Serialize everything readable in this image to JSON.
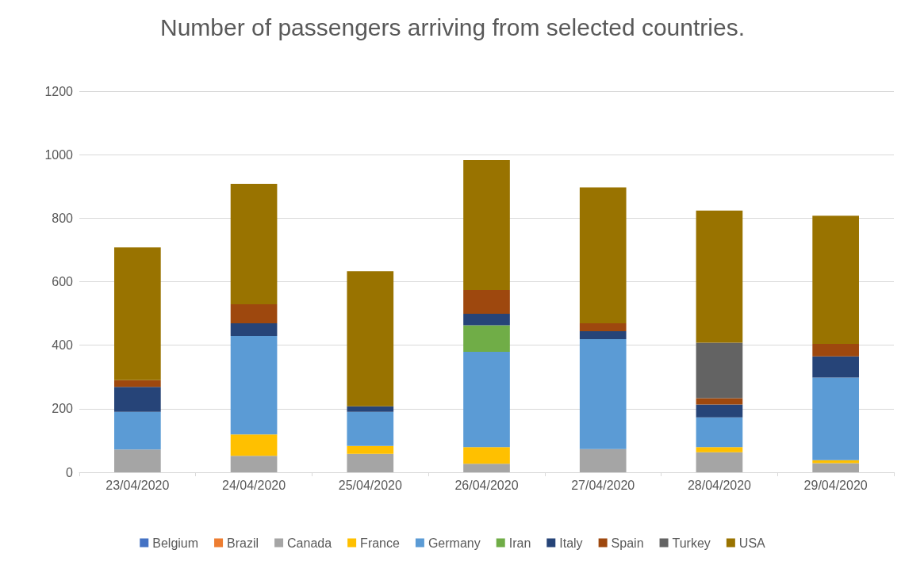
{
  "chart_data": {
    "type": "bar",
    "title": "Number of passengers arriving from selected countries.",
    "categories": [
      "23/04/2020",
      "24/04/2020",
      "25/04/2020",
      "26/04/2020",
      "27/04/2020",
      "28/04/2020",
      "29/04/2020"
    ],
    "stacked": true,
    "ylim": [
      0,
      1200
    ],
    "yticks": [
      0,
      200,
      400,
      600,
      800,
      1000,
      1200
    ],
    "grid": "y",
    "legend": "bottom",
    "series": [
      {
        "name": "Belgium",
        "color": "#4472c4",
        "values": [
          0,
          0,
          0,
          0,
          0,
          0,
          0
        ]
      },
      {
        "name": "Brazil",
        "color": "#ed7d31",
        "values": [
          0,
          0,
          0,
          0,
          0,
          0,
          0
        ]
      },
      {
        "name": "Canada",
        "color": "#a5a5a5",
        "values": [
          72,
          52,
          58,
          27,
          73,
          63,
          29
        ]
      },
      {
        "name": "France",
        "color": "#ffc000",
        "values": [
          0,
          67,
          25,
          52,
          0,
          16,
          9
        ]
      },
      {
        "name": "Germany",
        "color": "#5b9bd5",
        "values": [
          118,
          310,
          107,
          300,
          346,
          94,
          260
        ]
      },
      {
        "name": "Iran",
        "color": "#70ad47",
        "values": [
          0,
          0,
          0,
          84,
          0,
          0,
          0
        ]
      },
      {
        "name": "Italy",
        "color": "#264478",
        "values": [
          79,
          40,
          18,
          36,
          25,
          40,
          67
        ]
      },
      {
        "name": "Spain",
        "color": "#9e480e",
        "values": [
          21,
          60,
          0,
          75,
          25,
          20,
          39
        ]
      },
      {
        "name": "Turkey",
        "color": "#636363",
        "values": [
          0,
          0,
          0,
          0,
          0,
          175,
          0
        ]
      },
      {
        "name": "USA",
        "color": "#997300",
        "values": [
          418,
          379,
          425,
          409,
          428,
          416,
          404
        ]
      }
    ]
  }
}
